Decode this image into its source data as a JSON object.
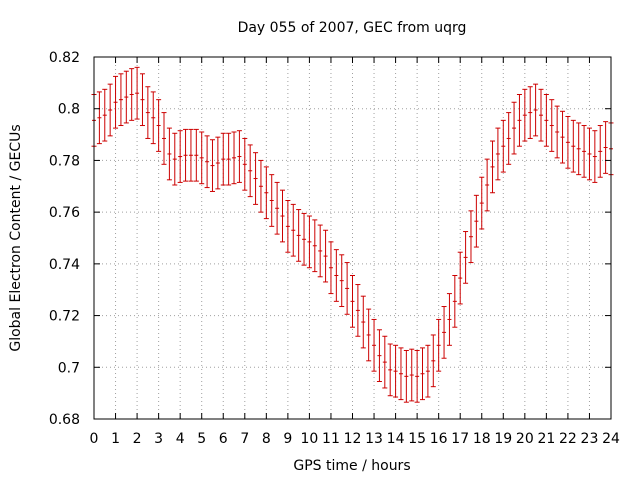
{
  "chart_data": {
    "type": "scatter",
    "title": "Day 055 of 2007, GEC from uqrg",
    "xlabel": "GPS time / hours",
    "ylabel": "Global Electron Content / GECUs",
    "xlim": [
      0,
      24
    ],
    "ylim": [
      0.68,
      0.82
    ],
    "xticks": [
      0,
      1,
      2,
      3,
      4,
      5,
      6,
      7,
      8,
      9,
      10,
      11,
      12,
      13,
      14,
      15,
      16,
      17,
      18,
      19,
      20,
      21,
      22,
      23,
      24
    ],
    "yticks": [
      0.68,
      0.7,
      0.72,
      0.74,
      0.76,
      0.78,
      0.8,
      0.82
    ],
    "ytick_labels": [
      "0.68",
      "0.7",
      "0.72",
      "0.74",
      "0.76",
      "0.78",
      "0.8",
      "0.82"
    ],
    "grid": true,
    "series": [
      {
        "name": "GEC",
        "color": "#cc0000",
        "x": [
          0,
          0.25,
          0.5,
          0.75,
          1,
          1.25,
          1.5,
          1.75,
          2,
          2.25,
          2.5,
          2.75,
          3,
          3.25,
          3.5,
          3.75,
          4,
          4.25,
          4.5,
          4.75,
          5,
          5.25,
          5.5,
          5.75,
          6,
          6.25,
          6.5,
          6.75,
          7,
          7.25,
          7.5,
          7.75,
          8,
          8.25,
          8.5,
          8.75,
          9,
          9.25,
          9.5,
          9.75,
          10,
          10.25,
          10.5,
          10.75,
          11,
          11.25,
          11.5,
          11.75,
          12,
          12.25,
          12.5,
          12.75,
          13,
          13.25,
          13.5,
          13.75,
          14,
          14.25,
          14.5,
          14.75,
          15,
          15.25,
          15.5,
          15.75,
          16,
          16.25,
          16.5,
          16.75,
          17,
          17.25,
          17.5,
          17.75,
          18,
          18.25,
          18.5,
          18.75,
          19,
          19.25,
          19.5,
          19.75,
          20,
          20.25,
          20.5,
          20.75,
          21,
          21.25,
          21.5,
          21.75,
          22,
          22.25,
          22.5,
          22.75,
          23,
          23.25,
          23.5,
          23.75,
          24
        ],
        "y": [
          0.7955,
          0.7965,
          0.7975,
          0.7995,
          0.8025,
          0.8035,
          0.8045,
          0.8055,
          0.806,
          0.8035,
          0.7985,
          0.7965,
          0.7935,
          0.7885,
          0.7825,
          0.7805,
          0.7815,
          0.782,
          0.782,
          0.782,
          0.781,
          0.7795,
          0.778,
          0.779,
          0.7805,
          0.7805,
          0.781,
          0.7815,
          0.7785,
          0.776,
          0.773,
          0.77,
          0.7675,
          0.7645,
          0.7615,
          0.7585,
          0.7545,
          0.753,
          0.751,
          0.7495,
          0.7485,
          0.747,
          0.745,
          0.743,
          0.7385,
          0.7355,
          0.7335,
          0.7305,
          0.7255,
          0.722,
          0.7175,
          0.7125,
          0.7085,
          0.7045,
          0.702,
          0.699,
          0.6985,
          0.6975,
          0.6965,
          0.697,
          0.6965,
          0.6975,
          0.6985,
          0.7025,
          0.7085,
          0.7135,
          0.7185,
          0.7255,
          0.7345,
          0.7425,
          0.7505,
          0.7565,
          0.7635,
          0.7705,
          0.7775,
          0.7825,
          0.7855,
          0.7885,
          0.7925,
          0.7955,
          0.7975,
          0.7985,
          0.7995,
          0.7975,
          0.7955,
          0.7935,
          0.791,
          0.789,
          0.787,
          0.7855,
          0.7845,
          0.7835,
          0.7825,
          0.7815,
          0.7835,
          0.785,
          0.7845
        ],
        "error": 0.01
      }
    ]
  }
}
